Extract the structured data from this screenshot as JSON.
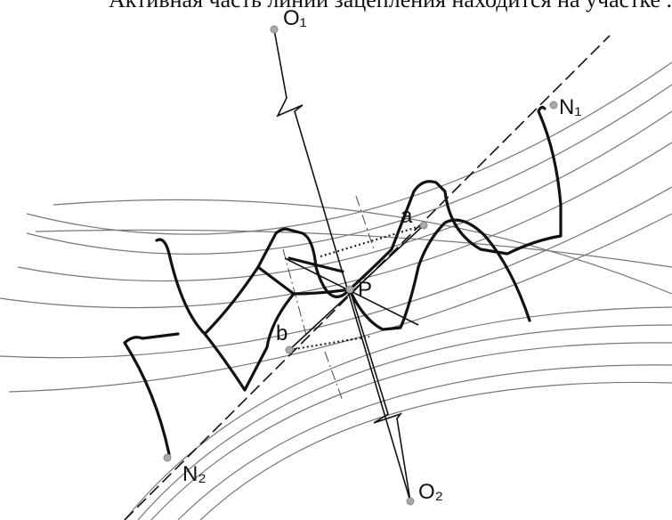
{
  "header": {
    "text": "Активная часть линии зацепления находится на участке ..."
  },
  "labels": {
    "o1": "O₁",
    "o2": "O₂",
    "n1": "N₁",
    "n2": "N₂",
    "p": "P",
    "a": "a",
    "b": "b"
  }
}
